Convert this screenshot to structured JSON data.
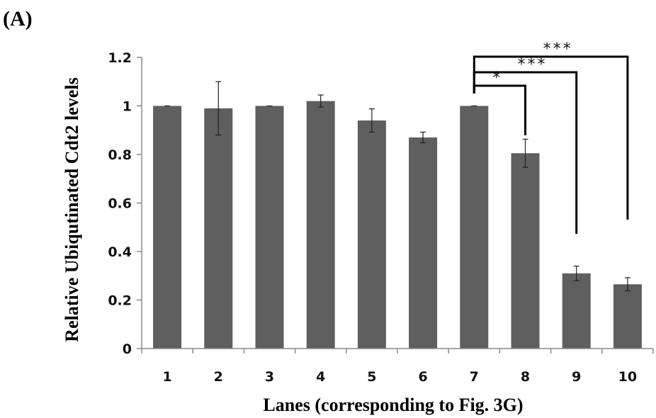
{
  "panel_label": "(A)",
  "colors": {
    "bar": "#5f5f5f",
    "axis": "#8a8a8a",
    "bracket": "#000000"
  },
  "chart_data": {
    "type": "bar",
    "title": "",
    "xlabel": "Lanes (corresponding to Fig. 3G)",
    "ylabel": "Relative Ubiqutinated Cdt2 levels",
    "ylim": [
      0,
      1.2
    ],
    "yticks": [
      "0",
      "0.2",
      "0.4",
      "0.6",
      "0.8",
      "1",
      "1.2"
    ],
    "categories": [
      "1",
      "2",
      "3",
      "4",
      "5",
      "6",
      "7",
      "8",
      "9",
      "10"
    ],
    "values": [
      1.0,
      0.99,
      1.0,
      1.02,
      0.94,
      0.87,
      1.0,
      0.805,
      0.31,
      0.265
    ],
    "errors": [
      0.0,
      0.11,
      0.0,
      0.025,
      0.048,
      0.022,
      0.0,
      0.058,
      0.03,
      0.027
    ],
    "grid": false,
    "legend": "none",
    "significance": [
      {
        "from": "7",
        "to": "8",
        "label": "*"
      },
      {
        "from": "7",
        "to": "9",
        "label": "***"
      },
      {
        "from": "7",
        "to": "10",
        "label": "***"
      }
    ]
  }
}
